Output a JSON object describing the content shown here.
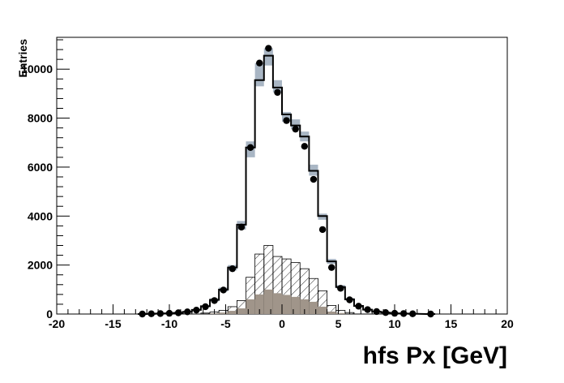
{
  "chart_data": {
    "type": "histogram",
    "title": "",
    "xlabel": "hfs Px [GeV]",
    "ylabel": "Entries",
    "xlim": [
      -20,
      20
    ],
    "ylim": [
      0,
      11300
    ],
    "x_ticks": [
      -20,
      -15,
      -10,
      -5,
      0,
      5,
      10,
      15,
      20
    ],
    "x_tick_labels": [
      "-20",
      "-15",
      "-10",
      "-5",
      "0",
      "5",
      "10",
      "15",
      "20"
    ],
    "y_ticks": [
      0,
      2000,
      4000,
      6000,
      8000,
      10000
    ],
    "y_tick_labels": [
      "0",
      "2000",
      "4000",
      "6000",
      "8000",
      "10000"
    ],
    "grid": false,
    "legend": "none",
    "bin_width": 0.8,
    "series": [
      {
        "kind": "data-points",
        "color": "#000000",
        "points": [
          {
            "x": -12.4,
            "y": 0
          },
          {
            "x": -11.6,
            "y": 10
          },
          {
            "x": -10.8,
            "y": 20
          },
          {
            "x": -10.0,
            "y": 30
          },
          {
            "x": -9.2,
            "y": 50
          },
          {
            "x": -8.4,
            "y": 90
          },
          {
            "x": -7.6,
            "y": 160
          },
          {
            "x": -6.8,
            "y": 300
          },
          {
            "x": -6.0,
            "y": 550
          },
          {
            "x": -5.2,
            "y": 980
          },
          {
            "x": -4.4,
            "y": 1850
          },
          {
            "x": -3.6,
            "y": 3550
          },
          {
            "x": -2.8,
            "y": 6800
          },
          {
            "x": -2.0,
            "y": 10250
          },
          {
            "x": -1.2,
            "y": 10850
          },
          {
            "x": -0.4,
            "y": 9050
          },
          {
            "x": 0.4,
            "y": 7900
          },
          {
            "x": 1.2,
            "y": 7550
          },
          {
            "x": 2.0,
            "y": 6850
          },
          {
            "x": 2.8,
            "y": 5500
          },
          {
            "x": 3.6,
            "y": 3450
          },
          {
            "x": 4.4,
            "y": 1900
          },
          {
            "x": 5.2,
            "y": 1050
          },
          {
            "x": 6.0,
            "y": 580
          },
          {
            "x": 6.8,
            "y": 320
          },
          {
            "x": 7.6,
            "y": 180
          },
          {
            "x": 8.4,
            "y": 100
          },
          {
            "x": 9.2,
            "y": 60
          },
          {
            "x": 10.0,
            "y": 30
          },
          {
            "x": 10.8,
            "y": 20
          },
          {
            "x": 11.6,
            "y": 10
          },
          {
            "x": 13.2,
            "y": 0
          }
        ]
      },
      {
        "kind": "mc-total-step",
        "color": "#000000",
        "bins": [
          {
            "x": -12.4,
            "y": 0
          },
          {
            "x": -11.6,
            "y": 10
          },
          {
            "x": -10.8,
            "y": 20
          },
          {
            "x": -10.0,
            "y": 30
          },
          {
            "x": -9.2,
            "y": 50
          },
          {
            "x": -8.4,
            "y": 90
          },
          {
            "x": -7.6,
            "y": 170
          },
          {
            "x": -6.8,
            "y": 320
          },
          {
            "x": -6.0,
            "y": 580
          },
          {
            "x": -5.2,
            "y": 1000
          },
          {
            "x": -4.4,
            "y": 1900
          },
          {
            "x": -3.6,
            "y": 3650
          },
          {
            "x": -2.8,
            "y": 6800
          },
          {
            "x": -2.0,
            "y": 9550
          },
          {
            "x": -1.2,
            "y": 10550
          },
          {
            "x": -0.4,
            "y": 9250
          },
          {
            "x": 0.4,
            "y": 8150
          },
          {
            "x": 1.2,
            "y": 7700
          },
          {
            "x": 2.0,
            "y": 7250
          },
          {
            "x": 2.8,
            "y": 5850
          },
          {
            "x": 3.6,
            "y": 4000
          },
          {
            "x": 4.4,
            "y": 2150
          },
          {
            "x": 5.2,
            "y": 1100
          },
          {
            "x": 6.0,
            "y": 600
          },
          {
            "x": 6.8,
            "y": 330
          },
          {
            "x": 7.6,
            "y": 180
          },
          {
            "x": 8.4,
            "y": 100
          },
          {
            "x": 9.2,
            "y": 60
          },
          {
            "x": 10.0,
            "y": 30
          },
          {
            "x": 10.8,
            "y": 20
          },
          {
            "x": 11.6,
            "y": 10
          },
          {
            "x": 13.2,
            "y": 0
          }
        ]
      },
      {
        "kind": "mc-uncertainty-band",
        "color": "#a9b6c4",
        "bands": [
          {
            "x": -6.0,
            "lo": 520,
            "hi": 640
          },
          {
            "x": -5.2,
            "lo": 920,
            "hi": 1080
          },
          {
            "x": -4.4,
            "lo": 1780,
            "hi": 2000
          },
          {
            "x": -3.6,
            "lo": 3450,
            "hi": 3800
          },
          {
            "x": -2.8,
            "lo": 6400,
            "hi": 7050
          },
          {
            "x": -2.0,
            "lo": 9300,
            "hi": 10250
          },
          {
            "x": -1.2,
            "lo": 10150,
            "hi": 10850
          },
          {
            "x": -0.4,
            "lo": 9050,
            "hi": 9550
          },
          {
            "x": 0.4,
            "lo": 7850,
            "hi": 8250
          },
          {
            "x": 1.2,
            "lo": 7550,
            "hi": 7950
          },
          {
            "x": 2.0,
            "lo": 7050,
            "hi": 7450
          },
          {
            "x": 2.8,
            "lo": 5650,
            "hi": 6100
          },
          {
            "x": 3.6,
            "lo": 3850,
            "hi": 4100
          },
          {
            "x": 4.4,
            "lo": 2050,
            "hi": 2250
          },
          {
            "x": 5.2,
            "lo": 1050,
            "hi": 1180
          },
          {
            "x": 6.0,
            "lo": 560,
            "hi": 650
          }
        ]
      },
      {
        "kind": "hatched-component",
        "color": "#000000",
        "bins": [
          {
            "x": -6.8,
            "y": 40
          },
          {
            "x": -6.0,
            "y": 80
          },
          {
            "x": -5.2,
            "y": 150
          },
          {
            "x": -4.4,
            "y": 300
          },
          {
            "x": -3.6,
            "y": 550
          },
          {
            "x": -2.8,
            "y": 1500
          },
          {
            "x": -2.0,
            "y": 2450
          },
          {
            "x": -1.2,
            "y": 2800
          },
          {
            "x": -0.4,
            "y": 2350
          },
          {
            "x": 0.4,
            "y": 2250
          },
          {
            "x": 1.2,
            "y": 2100
          },
          {
            "x": 2.0,
            "y": 1850
          },
          {
            "x": 2.8,
            "y": 1450
          },
          {
            "x": 3.6,
            "y": 950
          },
          {
            "x": 4.4,
            "y": 350
          },
          {
            "x": 5.2,
            "y": 150
          },
          {
            "x": 6.0,
            "y": 60
          }
        ]
      },
      {
        "kind": "filled-component",
        "color": "#a0958a",
        "bins": [
          {
            "x": -6.0,
            "y": 30
          },
          {
            "x": -5.2,
            "y": 60
          },
          {
            "x": -4.4,
            "y": 130
          },
          {
            "x": -3.6,
            "y": 230
          },
          {
            "x": -2.8,
            "y": 600
          },
          {
            "x": -2.0,
            "y": 800
          },
          {
            "x": -1.2,
            "y": 1000
          },
          {
            "x": -0.4,
            "y": 850
          },
          {
            "x": 0.4,
            "y": 780
          },
          {
            "x": 1.2,
            "y": 700
          },
          {
            "x": 2.0,
            "y": 600
          },
          {
            "x": 2.8,
            "y": 500
          },
          {
            "x": 3.6,
            "y": 300
          },
          {
            "x": 4.4,
            "y": 100
          },
          {
            "x": 5.2,
            "y": 40
          }
        ]
      }
    ]
  }
}
